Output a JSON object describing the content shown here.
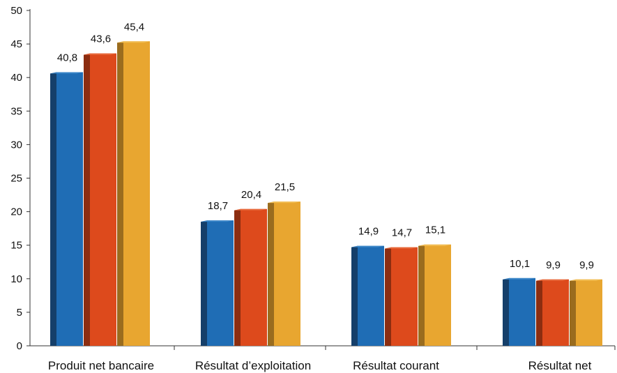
{
  "chart_data": {
    "type": "bar",
    "categories": [
      "Produit net bancaire",
      "Résultat d’exploitation",
      "Résultat courant",
      "Résultat net"
    ],
    "series": [
      {
        "values": [
          40.8,
          18.7,
          14.9,
          10.1
        ],
        "color": "#1f6db5",
        "side_color": "#153f6a",
        "top_color": "#3a86c8"
      },
      {
        "values": [
          43.6,
          20.4,
          14.7,
          9.9
        ],
        "color": "#dd4a1c",
        "side_color": "#8c2d10",
        "top_color": "#e86a3c"
      },
      {
        "values": [
          45.4,
          21.5,
          15.1,
          9.9
        ],
        "color": "#e8a630",
        "side_color": "#9a6c1e",
        "top_color": "#f2bd52"
      }
    ],
    "data_labels": [
      [
        "40,8",
        "43,6",
        "45,4"
      ],
      [
        "18,7",
        "20,4",
        "21,5"
      ],
      [
        "14,9",
        "14,7",
        "15,1"
      ],
      [
        "10,1",
        "9,9",
        "9,9"
      ]
    ],
    "y_ticks": [
      "0",
      "5",
      "10",
      "15",
      "20",
      "25",
      "30",
      "35",
      "40",
      "45",
      "50"
    ],
    "ylim": [
      0,
      50
    ],
    "grid": false,
    "legend": false
  }
}
